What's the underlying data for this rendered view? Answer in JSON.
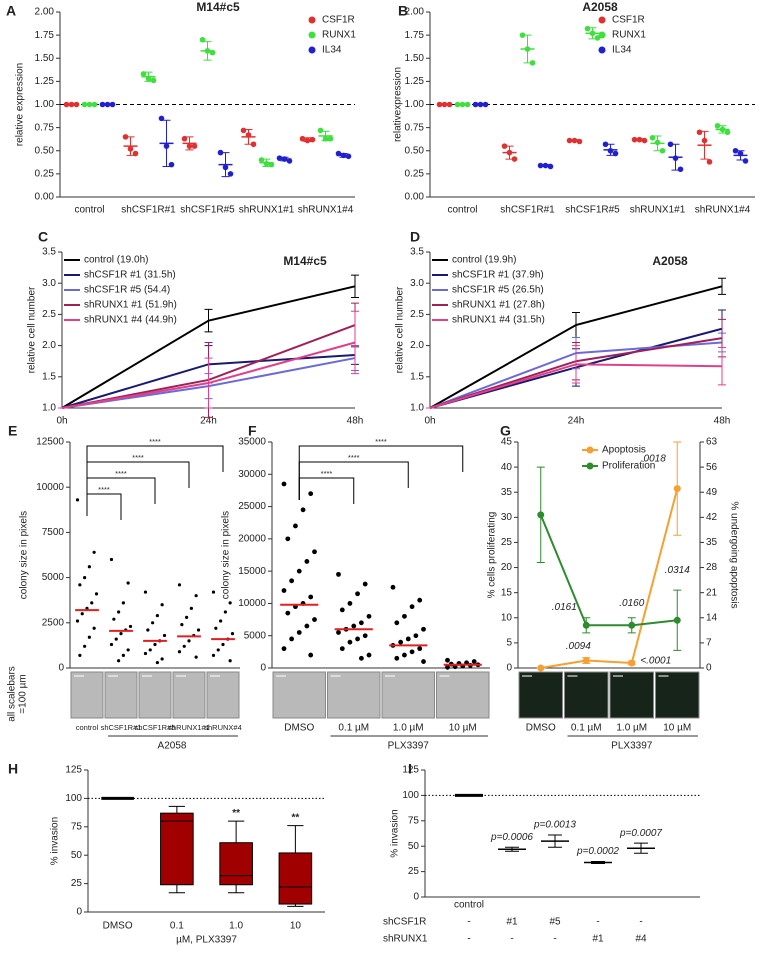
{
  "chart_data": [
    {
      "type": "dot",
      "label": "A",
      "title": "M14#c5",
      "ylabel": "relative expression",
      "categories": [
        "control",
        "shCSF1R#1",
        "shCSF1R#5",
        "shRUNX1#1",
        "shRUNX1#4"
      ],
      "ylim": [
        0,
        2
      ],
      "yticks": [
        {
          "value": 0,
          "label": "0.00"
        },
        {
          "value": 0.25,
          "label": "0.25"
        },
        {
          "value": 0.5,
          "label": "0.50"
        },
        {
          "value": 0.75,
          "label": "0.75"
        },
        {
          "value": 1,
          "label": "1.00"
        },
        {
          "value": 1.25,
          "label": "1.25"
        },
        {
          "value": 1.5,
          "label": "1.50"
        },
        {
          "value": 1.75,
          "label": "1.75"
        },
        {
          "value": 2,
          "label": "2.00"
        }
      ],
      "refline": 1,
      "series": [
        {
          "name": "CSF1R",
          "color": "#e03030",
          "values": [
            1,
            0.55,
            0.58,
            0.65,
            0.62
          ],
          "errors": [
            0,
            0.1,
            0.07,
            0.08,
            0.02
          ],
          "points": [
            [
              1,
              1,
              1
            ],
            [
              0.65,
              0.52,
              0.47
            ],
            [
              0.63,
              0.55,
              0.55
            ],
            [
              0.72,
              0.67,
              0.57
            ],
            [
              0.63,
              0.61,
              0.62
            ]
          ]
        },
        {
          "name": "RUNX1",
          "color": "#3ee03e",
          "values": [
            1,
            1.3,
            1.58,
            0.37,
            0.66
          ],
          "errors": [
            0,
            0.05,
            0.1,
            0.04,
            0.05
          ],
          "points": [
            [
              1,
              1,
              1
            ],
            [
              1.33,
              1.28,
              1.26
            ],
            [
              1.7,
              1.58,
              1.56
            ],
            [
              0.4,
              0.36,
              0.35
            ],
            [
              0.72,
              0.63,
              0.63
            ]
          ]
        },
        {
          "name": "IL34",
          "color": "#2020d0",
          "values": [
            1,
            0.58,
            0.35,
            0.41,
            0.45
          ],
          "errors": [
            0,
            0.25,
            0.13,
            0.02,
            0.02
          ],
          "points": [
            [
              1,
              1,
              1
            ],
            [
              0.85,
              0.55,
              0.35
            ],
            [
              0.48,
              0.32,
              0.25
            ],
            [
              0.42,
              0.41,
              0.39
            ],
            [
              0.47,
              0.45,
              0.44
            ]
          ]
        }
      ]
    },
    {
      "type": "dot",
      "label": "B",
      "title": "A2058",
      "ylabel": "relativexpression",
      "categories": [
        "control",
        "shCSF1R#1",
        "shCSF1R#5",
        "shRUNX1#1",
        "shRUNX1#4"
      ],
      "ylim": [
        0,
        2
      ],
      "yticks": [
        {
          "value": 0,
          "label": "0.00"
        },
        {
          "value": 0.25,
          "label": "0.25"
        },
        {
          "value": 0.5,
          "label": "0.50"
        },
        {
          "value": 0.75,
          "label": "0.75"
        },
        {
          "value": 1,
          "label": "1.00"
        },
        {
          "value": 1.25,
          "label": "1.25"
        },
        {
          "value": 1.5,
          "label": "1.50"
        },
        {
          "value": 1.75,
          "label": "1.75"
        },
        {
          "value": 2,
          "label": "2.00"
        }
      ],
      "refline": 1,
      "series": [
        {
          "name": "CSF1R",
          "color": "#e03030",
          "values": [
            1,
            0.48,
            0.61,
            0.62,
            0.56
          ],
          "errors": [
            0,
            0.07,
            0.01,
            0.01,
            0.15
          ],
          "points": [
            [
              1,
              1,
              1
            ],
            [
              0.55,
              0.48,
              0.41
            ],
            [
              0.61,
              0.61,
              0.6
            ],
            [
              0.62,
              0.62,
              0.61
            ],
            [
              0.7,
              0.61,
              0.38
            ]
          ]
        },
        {
          "name": "RUNX1",
          "color": "#3ee03e",
          "values": [
            1,
            1.6,
            1.77,
            0.58,
            0.73
          ],
          "errors": [
            0,
            0.15,
            0.06,
            0.08,
            0.04
          ],
          "points": [
            [
              1,
              1,
              1
            ],
            [
              1.75,
              1.6,
              1.45
            ],
            [
              1.82,
              1.77,
              1.72
            ],
            [
              0.64,
              0.59,
              0.5
            ],
            [
              0.77,
              0.73,
              0.7
            ]
          ]
        },
        {
          "name": "IL34",
          "color": "#2020d0",
          "values": [
            1,
            0.34,
            0.51,
            0.43,
            0.45
          ],
          "errors": [
            0,
            0.01,
            0.06,
            0.14,
            0.05
          ],
          "points": [
            [
              1,
              1,
              1
            ],
            [
              0.34,
              0.34,
              0.33
            ],
            [
              0.57,
              0.5,
              0.47
            ],
            [
              0.57,
              0.42,
              0.3
            ],
            [
              0.5,
              0.47,
              0.39
            ]
          ]
        }
      ]
    },
    {
      "type": "line",
      "label": "C",
      "title": "M14#c5",
      "ylabel": "relative cell number",
      "categories": [
        "0h",
        "24h",
        "48h"
      ],
      "ylim": [
        1,
        3.5
      ],
      "yticks": [
        {
          "value": 1,
          "label": "1.0"
        },
        {
          "value": 1.5,
          "label": "1.5"
        },
        {
          "value": 2,
          "label": "2.0"
        },
        {
          "value": 2.5,
          "label": "2.5"
        },
        {
          "value": 3,
          "label": "3.0"
        },
        {
          "value": 3.5,
          "label": "3.5"
        }
      ],
      "series": [
        {
          "name": "control (19.0h)",
          "color": "#000000",
          "values": [
            1,
            2.4,
            2.95
          ],
          "errors": [
            0,
            0.18,
            0.18
          ]
        },
        {
          "name": "shCSF1R #1 (31.5h)",
          "color": "#1a1a70",
          "values": [
            1,
            1.7,
            1.85
          ],
          "errors": [
            0,
            0.3,
            0.15
          ]
        },
        {
          "name": "shCSF1R #5 (54.4)",
          "color": "#6a6ad8",
          "values": [
            1,
            1.35,
            1.8
          ],
          "errors": [
            0,
            0.2,
            0.2
          ]
        },
        {
          "name": "shRUNX1 #1 (51.9h)",
          "color": "#a0205a",
          "values": [
            1,
            1.45,
            2.33
          ],
          "errors": [
            0,
            0.6,
            0.35
          ]
        },
        {
          "name": "shRUNX1 #4 (44.9h)",
          "color": "#e0408a",
          "values": [
            1,
            1.4,
            2.05
          ],
          "errors": [
            0,
            0.4,
            0.5
          ]
        }
      ]
    },
    {
      "type": "line",
      "label": "D",
      "title": "A2058",
      "ylabel": "relative cell number",
      "categories": [
        "0h",
        "24h",
        "48h"
      ],
      "ylim": [
        1,
        3.5
      ],
      "yticks": [
        {
          "value": 1,
          "label": "1.0"
        },
        {
          "value": 1.5,
          "label": "1.5"
        },
        {
          "value": 2,
          "label": "2.0"
        },
        {
          "value": 2.5,
          "label": "2.5"
        },
        {
          "value": 3,
          "label": "3.0"
        },
        {
          "value": 3.5,
          "label": "3.5"
        }
      ],
      "series": [
        {
          "name": "control (19.9h)",
          "color": "#000000",
          "values": [
            1,
            2.33,
            2.95
          ],
          "errors": [
            0,
            0.2,
            0.13
          ]
        },
        {
          "name": "shCSF1R #1 (37.9h)",
          "color": "#1a1a70",
          "values": [
            1,
            1.65,
            2.27
          ],
          "errors": [
            0,
            0.3,
            0.3
          ]
        },
        {
          "name": "shCSF1R #5 (26.5h)",
          "color": "#6a6ad8",
          "values": [
            1,
            1.88,
            2.05
          ],
          "errors": [
            0,
            0.25,
            0.15
          ]
        },
        {
          "name": "shRUNX1 #1 (27.8h)",
          "color": "#a0205a",
          "values": [
            1,
            1.75,
            2.12
          ],
          "errors": [
            0,
            0.3,
            0.3
          ]
        },
        {
          "name": "shRUNX1 #4 (31.5h)",
          "color": "#e0408a",
          "values": [
            1,
            1.7,
            1.67
          ],
          "errors": [
            0,
            0.3,
            0.3
          ]
        }
      ]
    },
    {
      "type": "strip",
      "label": "E",
      "ylabel": "colony size in pixels",
      "side_label": [
        "all scalebars",
        "=100 µm"
      ],
      "group": "A2058",
      "categories": [
        "control",
        "shCSF1R#1",
        "shCSF1R#5",
        "shRUNX1#1",
        "shRUNX#4"
      ],
      "ylim": [
        0,
        12500
      ],
      "yticks": [
        0,
        2500,
        5000,
        7500,
        10000,
        12500
      ],
      "color": "#000000",
      "median_color": "#e02020",
      "points": [
        [
          9300,
          6400,
          5600,
          5000,
          4600,
          4100,
          3600,
          3300,
          3000,
          2600,
          2200,
          1700,
          1200,
          700
        ],
        [
          6000,
          4700,
          3600,
          3100,
          2700,
          2300,
          2100,
          1900,
          1600,
          1300,
          1000,
          700,
          400
        ],
        [
          4200,
          3500,
          2900,
          2500,
          2100,
          1800,
          1500,
          1300,
          1000,
          800,
          500,
          300
        ],
        [
          4600,
          4000,
          3300,
          2800,
          2400,
          2100,
          1800,
          1500,
          1200,
          900,
          600
        ],
        [
          4200,
          3600,
          3100,
          2600,
          2200,
          1900,
          1600,
          1300,
          1000,
          700,
          400
        ]
      ],
      "medians": [
        3200,
        2050,
        1500,
        1750,
        1600
      ],
      "significance": [
        "****",
        "****",
        "****",
        "****"
      ]
    },
    {
      "type": "strip",
      "label": "F",
      "ylabel": "colony size in pixels",
      "group": "PLX3397",
      "categories": [
        "DMSO",
        "0.1 µM",
        "1.0 µM",
        "10 µM"
      ],
      "ylim": [
        0,
        35000
      ],
      "yticks": [
        0,
        5000,
        10000,
        15000,
        20000,
        25000,
        30000,
        35000
      ],
      "color": "#000000",
      "median_color": "#e02020",
      "points": [
        [
          28500,
          27000,
          24500,
          22000,
          20000,
          18000,
          16500,
          15000,
          13500,
          12000,
          11000,
          10000,
          9500,
          8500,
          7500,
          6500,
          5500,
          4500,
          3000,
          2000
        ],
        [
          14500,
          13000,
          11500,
          10000,
          9000,
          8000,
          7000,
          6500,
          6000,
          5500,
          5000,
          4500,
          4000,
          3000,
          2000,
          1500
        ],
        [
          12500,
          10500,
          9500,
          8000,
          7000,
          6000,
          5000,
          4500,
          4000,
          3500,
          3000,
          2500,
          2000,
          1500,
          1000
        ],
        [
          1200,
          1000,
          800,
          700,
          600,
          500,
          400,
          300,
          200,
          100
        ]
      ],
      "medians": [
        9800,
        6000,
        3500,
        500
      ],
      "significance": [
        "****",
        "****",
        "****"
      ]
    },
    {
      "type": "line",
      "label": "G",
      "ylabel": "% cells proliferating",
      "y2label": "% undergoing apoptosis",
      "group": "PLX3397",
      "categories": [
        "DMSO",
        "0.1 µM",
        "1.0 µM",
        "10 µM"
      ],
      "ylim": [
        0,
        45
      ],
      "yticks": [
        0,
        5,
        10,
        15,
        20,
        25,
        30,
        35,
        40,
        45
      ],
      "y2lim": [
        0,
        63
      ],
      "y2ticks": [
        0,
        7,
        14,
        21,
        28,
        35,
        42,
        49,
        56,
        63
      ],
      "series": [
        {
          "name": "Apoptosis",
          "color": "#f5a030",
          "axis": "y2",
          "values": [
            0,
            2.1,
            1.4,
            50
          ],
          "errors": [
            0,
            0.8,
            0.5,
            13
          ]
        },
        {
          "name": "Proliferation",
          "color": "#2e8b2e",
          "values": [
            30.5,
            8.5,
            8.5,
            9.5
          ],
          "errors": [
            9.5,
            1.5,
            1.5,
            6
          ]
        }
      ],
      "annotations": [
        ".0161",
        ".0094",
        ".0160",
        "<.0001",
        ".0314",
        ".0018"
      ]
    },
    {
      "type": "box",
      "label": "H",
      "ylabel": "% invasion",
      "xlabel": "µM, PLX3397",
      "categories": [
        "DMSO",
        "0.1",
        "1.0",
        "10"
      ],
      "ylim": [
        0,
        125
      ],
      "yticks": [
        0,
        25,
        50,
        75,
        100,
        125
      ],
      "refline": 100,
      "color": "#a00000",
      "boxes": [
        [
          100,
          100,
          100,
          100,
          100
        ],
        [
          17,
          24,
          80,
          87,
          93
        ],
        [
          17,
          24,
          32,
          61,
          80
        ],
        [
          5,
          7,
          22,
          52,
          76
        ]
      ],
      "annotations": [
        "**",
        "**"
      ]
    },
    {
      "type": "errorbar",
      "label": "I",
      "ylabel": "% invasion",
      "categories": [
        "control",
        null,
        null,
        null,
        null
      ],
      "ylim": [
        0,
        125
      ],
      "yticks": [
        0,
        25,
        50,
        75,
        100,
        125
      ],
      "refline": 100,
      "color": "#000000",
      "values": [
        100,
        47,
        55,
        34,
        48
      ],
      "errors": [
        0,
        2,
        6,
        1,
        5
      ],
      "annotations": [
        "p=0.0006",
        "p=0.0013",
        "p=0.0002",
        "p=0.0007"
      ],
      "rows": [
        {
          "name": "shCSF1R",
          "labels": [
            "-",
            "#1",
            "#5",
            "-",
            "-"
          ]
        },
        {
          "name": "shRUNX1",
          "labels": [
            "-",
            "-",
            "-",
            "#1",
            "#4"
          ]
        }
      ]
    }
  ]
}
